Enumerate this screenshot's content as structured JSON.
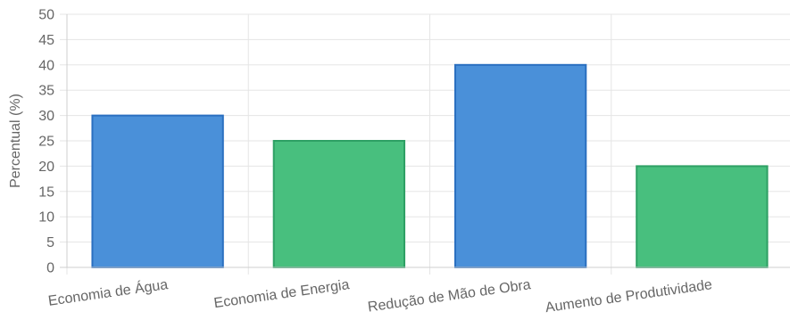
{
  "chart_data": {
    "type": "bar",
    "categories": [
      "Economia de Água",
      "Economia de Energia",
      "Redução de Mão de Obra",
      "Aumento de Produtividade"
    ],
    "values": [
      30,
      25,
      40,
      20
    ],
    "bar_colors": [
      "#4a90d9",
      "#48bf7e",
      "#4a90d9",
      "#48bf7e"
    ],
    "bar_border_colors": [
      "#2a6fc0",
      "#2ea064",
      "#2a6fc0",
      "#2ea064"
    ],
    "ylabel": "Percentual (%)",
    "xlabel": "",
    "ylim": [
      0,
      50
    ],
    "y_ticks": [
      0,
      5,
      10,
      15,
      20,
      25,
      30,
      35,
      40,
      45,
      50
    ],
    "grid": true,
    "legend": "none"
  }
}
